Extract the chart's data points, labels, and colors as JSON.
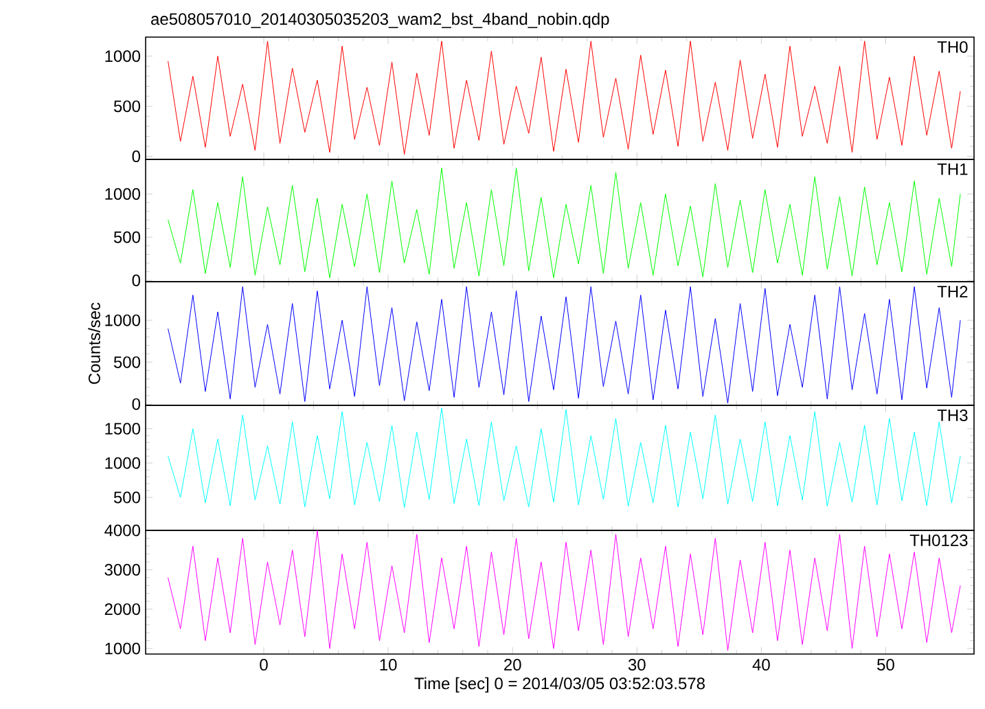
{
  "chart_data": [
    {
      "type": "line",
      "title": "ae508057010_20140305035203_wam2_bst_4band_nobin.qdp",
      "tick_labels": "y",
      "xlim": [
        -9.5,
        57.1
      ],
      "ylim": [
        -30,
        1190
      ],
      "xticks": [
        0,
        10,
        20,
        30,
        40,
        50
      ],
      "yticks": [
        0,
        500,
        1000
      ],
      "x": [
        -7.7,
        -6.7,
        -5.7,
        -4.7,
        -3.7,
        -2.7,
        -1.7,
        -0.7,
        0.3,
        1.3,
        2.3,
        3.3,
        4.3,
        5.3,
        6.3,
        7.3,
        8.3,
        9.3,
        10.3,
        11.3,
        12.3,
        13.3,
        14.3,
        15.3,
        16.3,
        17.3,
        18.3,
        19.3,
        20.3,
        21.3,
        22.3,
        23.3,
        24.3,
        25.3,
        26.3,
        27.3,
        28.3,
        29.3,
        30.3,
        31.3,
        32.3,
        33.3,
        34.3,
        35.3,
        36.3,
        37.3,
        38.3,
        39.3,
        40.3,
        41.3,
        42.3,
        43.3,
        44.3,
        45.3,
        46.3,
        47.3,
        48.3,
        49.3,
        50.3,
        51.3,
        52.3,
        53.3,
        54.3,
        55.3,
        56.0
      ],
      "series": [
        {
          "name": "TH0",
          "color": "#ff0000",
          "values": [
            950,
            150,
            800,
            90,
            1000,
            200,
            720,
            60,
            1150,
            130,
            880,
            240,
            760,
            40,
            1100,
            170,
            690,
            110,
            940,
            20,
            830,
            210,
            1150,
            80,
            760,
            160,
            1050,
            120,
            700,
            230,
            990,
            50,
            870,
            140,
            1150,
            190,
            780,
            70,
            1010,
            220,
            860,
            100,
            1150,
            150,
            740,
            60,
            960,
            180,
            820,
            90,
            1100,
            200,
            700,
            130,
            900,
            40,
            1150,
            170,
            790,
            110,
            1000,
            210,
            850,
            80,
            650
          ]
        }
      ]
    },
    {
      "type": "line",
      "tick_labels": "y",
      "xlim": [
        -9.5,
        57.1
      ],
      "ylim": [
        -15,
        1400
      ],
      "xticks": [
        0,
        10,
        20,
        30,
        40,
        50
      ],
      "yticks": [
        0,
        500,
        1000
      ],
      "x": [
        -7.7,
        -6.7,
        -5.7,
        -4.7,
        -3.7,
        -2.7,
        -1.7,
        -0.7,
        0.3,
        1.3,
        2.3,
        3.3,
        4.3,
        5.3,
        6.3,
        7.3,
        8.3,
        9.3,
        10.3,
        11.3,
        12.3,
        13.3,
        14.3,
        15.3,
        16.3,
        17.3,
        18.3,
        19.3,
        20.3,
        21.3,
        22.3,
        23.3,
        24.3,
        25.3,
        26.3,
        27.3,
        28.3,
        29.3,
        30.3,
        31.3,
        32.3,
        33.3,
        34.3,
        35.3,
        36.3,
        37.3,
        38.3,
        39.3,
        40.3,
        41.3,
        42.3,
        43.3,
        44.3,
        45.3,
        46.3,
        47.3,
        48.3,
        49.3,
        50.3,
        51.3,
        52.3,
        53.3,
        54.3,
        55.3,
        56.0
      ],
      "series": [
        {
          "name": "TH1",
          "color": "#00ff00",
          "values": [
            700,
            200,
            1050,
            80,
            900,
            150,
            1200,
            60,
            850,
            180,
            1100,
            100,
            950,
            30,
            880,
            160,
            1000,
            90,
            1150,
            200,
            820,
            70,
            1300,
            140,
            900,
            50,
            1050,
            170,
            1300,
            110,
            960,
            30,
            880,
            190,
            1100,
            80,
            1250,
            140,
            900,
            60,
            1000,
            170,
            860,
            40,
            1120,
            150,
            930,
            90,
            1050,
            200,
            880,
            60,
            1200,
            130,
            970,
            50,
            1080,
            180,
            900,
            100,
            1150,
            70,
            950,
            160,
            1000
          ]
        }
      ]
    },
    {
      "type": "line",
      "tick_labels": "y",
      "ylabel": "Counts/sec",
      "xlim": [
        -9.5,
        57.1
      ],
      "ylim": [
        -15,
        1460
      ],
      "xticks": [
        0,
        10,
        20,
        30,
        40,
        50
      ],
      "yticks": [
        0,
        500,
        1000
      ],
      "x": [
        -7.7,
        -6.7,
        -5.7,
        -4.7,
        -3.7,
        -2.7,
        -1.7,
        -0.7,
        0.3,
        1.3,
        2.3,
        3.3,
        4.3,
        5.3,
        6.3,
        7.3,
        8.3,
        9.3,
        10.3,
        11.3,
        12.3,
        13.3,
        14.3,
        15.3,
        16.3,
        17.3,
        18.3,
        19.3,
        20.3,
        21.3,
        22.3,
        23.3,
        24.3,
        25.3,
        26.3,
        27.3,
        28.3,
        29.3,
        30.3,
        31.3,
        32.3,
        33.3,
        34.3,
        35.3,
        36.3,
        37.3,
        38.3,
        39.3,
        40.3,
        41.3,
        42.3,
        43.3,
        44.3,
        45.3,
        46.3,
        47.3,
        48.3,
        49.3,
        50.3,
        51.3,
        52.3,
        53.3,
        54.3,
        55.3,
        56.0
      ],
      "series": [
        {
          "name": "TH2",
          "color": "#0000ff",
          "values": [
            900,
            250,
            1300,
            150,
            1100,
            60,
            1400,
            200,
            950,
            120,
            1200,
            30,
            1350,
            180,
            1000,
            90,
            1400,
            220,
            1150,
            40,
            980,
            160,
            1250,
            80,
            1400,
            200,
            1100,
            110,
            1350,
            30,
            1050,
            170,
            1280,
            70,
            1400,
            210,
            990,
            120,
            1300,
            50,
            1120,
            180,
            1400,
            90,
            1020,
            10,
            1200,
            150,
            1380,
            100,
            950,
            200,
            1300,
            60,
            1400,
            170,
            1080,
            120,
            1250,
            50,
            1400,
            190,
            1150,
            80,
            1000
          ]
        }
      ]
    },
    {
      "type": "line",
      "tick_labels": "y",
      "xlim": [
        -9.5,
        57.1
      ],
      "ylim": [
        20,
        1840
      ],
      "xticks": [
        0,
        10,
        20,
        30,
        40,
        50
      ],
      "yticks": [
        500,
        1000,
        1500
      ],
      "x": [
        -7.7,
        -6.7,
        -5.7,
        -4.7,
        -3.7,
        -2.7,
        -1.7,
        -0.7,
        0.3,
        1.3,
        2.3,
        3.3,
        4.3,
        5.3,
        6.3,
        7.3,
        8.3,
        9.3,
        10.3,
        11.3,
        12.3,
        13.3,
        14.3,
        15.3,
        16.3,
        17.3,
        18.3,
        19.3,
        20.3,
        21.3,
        22.3,
        23.3,
        24.3,
        25.3,
        26.3,
        27.3,
        28.3,
        29.3,
        30.3,
        31.3,
        32.3,
        33.3,
        34.3,
        35.3,
        36.3,
        37.3,
        38.3,
        39.3,
        40.3,
        41.3,
        42.3,
        43.3,
        44.3,
        45.3,
        46.3,
        47.3,
        48.3,
        49.3,
        50.3,
        51.3,
        52.3,
        53.3,
        54.3,
        55.3,
        56.0
      ],
      "series": [
        {
          "name": "TH3",
          "color": "#00ffff",
          "values": [
            1100,
            500,
            1500,
            420,
            1350,
            380,
            1700,
            460,
            1250,
            400,
            1600,
            360,
            1400,
            480,
            1750,
            390,
            1300,
            440,
            1550,
            350,
            1450,
            470,
            1800,
            410,
            1350,
            380,
            1600,
            450,
            1250,
            360,
            1500,
            430,
            1780,
            390,
            1400,
            470,
            1650,
            370,
            1300,
            420,
            1550,
            360,
            1450,
            480,
            1700,
            400,
            1350,
            440,
            1600,
            380,
            1400,
            460,
            1750,
            370,
            1300,
            430,
            1550,
            390,
            1650,
            450,
            1450,
            380,
            1600,
            420,
            1100
          ]
        }
      ]
    },
    {
      "type": "line",
      "xlabel": "Time [sec] 0 = 2014/03/05 03:52:03.578",
      "xlim": [
        -9.5,
        57.1
      ],
      "ylim": [
        860,
        4000
      ],
      "xticks": [
        0,
        10,
        20,
        30,
        40,
        50
      ],
      "yticks": [
        1000,
        2000,
        3000,
        4000
      ],
      "x": [
        -7.7,
        -6.7,
        -5.7,
        -4.7,
        -3.7,
        -2.7,
        -1.7,
        -0.7,
        0.3,
        1.3,
        2.3,
        3.3,
        4.3,
        5.3,
        6.3,
        7.3,
        8.3,
        9.3,
        10.3,
        11.3,
        12.3,
        13.3,
        14.3,
        15.3,
        16.3,
        17.3,
        18.3,
        19.3,
        20.3,
        21.3,
        22.3,
        23.3,
        24.3,
        25.3,
        26.3,
        27.3,
        28.3,
        29.3,
        30.3,
        31.3,
        32.3,
        33.3,
        34.3,
        35.3,
        36.3,
        37.3,
        38.3,
        39.3,
        40.3,
        41.3,
        42.3,
        43.3,
        44.3,
        45.3,
        46.3,
        47.3,
        48.3,
        49.3,
        50.3,
        51.3,
        52.3,
        53.3,
        54.3,
        55.3,
        56.0
      ],
      "series": [
        {
          "name": "TH0123",
          "color": "#ff00ff",
          "values": [
            2800,
            1500,
            3600,
            1200,
            3300,
            1400,
            3800,
            1100,
            3200,
            1600,
            3500,
            1300,
            4000,
            1000,
            3400,
            1500,
            3700,
            1200,
            3100,
            1400,
            3900,
            1150,
            3300,
            1500,
            3600,
            1050,
            3450,
            1350,
            3800,
            1250,
            3200,
            1000,
            3700,
            1450,
            3500,
            1100,
            3900,
            1300,
            3300,
            1500,
            3600,
            1050,
            3400,
            1350,
            3800,
            950,
            3250,
            1400,
            3700,
            1200,
            3500,
            1100,
            3300,
            1450,
            3900,
            1000,
            3600,
            1300,
            3400,
            1500,
            3450,
            1150,
            3300,
            1400,
            2600
          ]
        }
      ]
    }
  ]
}
